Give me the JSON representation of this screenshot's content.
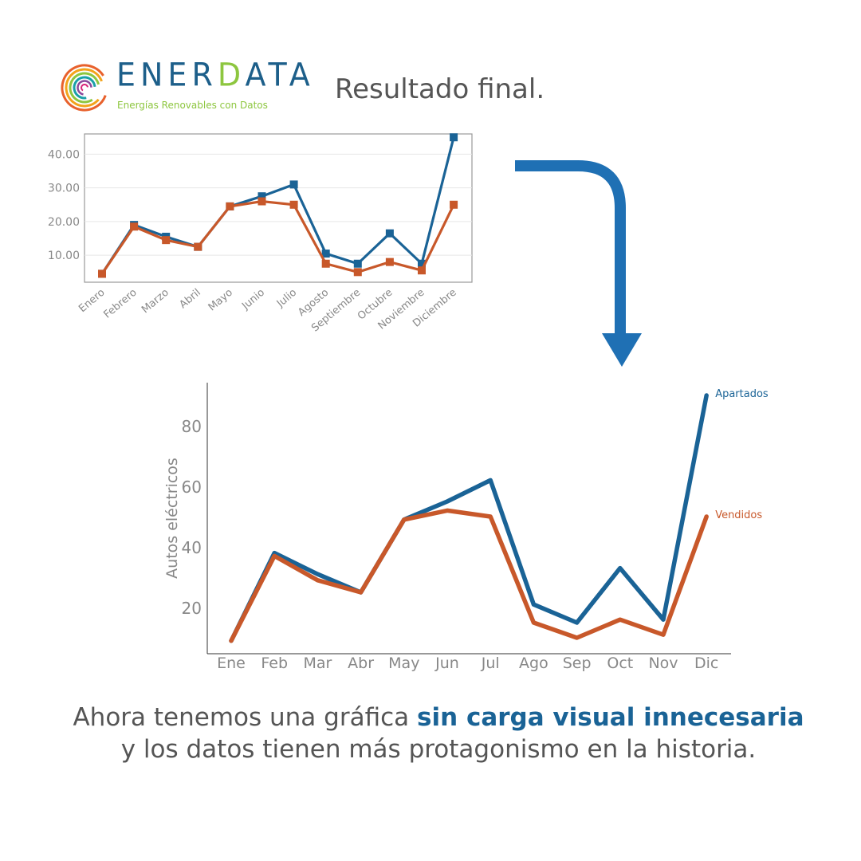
{
  "header": {
    "logo_text": "ENERDATA",
    "logo_tagline": "Energías Renovables con Datos",
    "title": "Resultado final."
  },
  "colors": {
    "apartados": "#1a6396",
    "vendidos": "#c8582a",
    "axis_text": "#888888",
    "arrow": "#1f70b4"
  },
  "arrow": {
    "icon": "curved-arrow-down-icon"
  },
  "chart_data": [
    {
      "type": "line",
      "grid": true,
      "markers": "square",
      "legend": "none",
      "categories": [
        "Enero",
        "Febrero",
        "Marzo",
        "Abril",
        "Mayo",
        "Junio",
        "Julio",
        "Agosto",
        "Septiembre",
        "Octubre",
        "Noviembre",
        "Diciembre"
      ],
      "yticks": [
        "10.00",
        "20.00",
        "30.00",
        "40.00"
      ],
      "ylim": [
        2,
        46
      ],
      "series": [
        {
          "name": "",
          "values": [
            4.5,
            19,
            15.5,
            12.5,
            24.5,
            27.5,
            31,
            10.5,
            7.5,
            16.5,
            7.5,
            45
          ]
        },
        {
          "name": "",
          "values": [
            4.5,
            18.5,
            14.5,
            12.5,
            24.5,
            26,
            25,
            7.5,
            5,
            8,
            5.5,
            25
          ]
        }
      ]
    },
    {
      "type": "line",
      "grid": false,
      "legend": "inline-right",
      "ylabel": "Autos eléctricos",
      "categories": [
        "Ene",
        "Feb",
        "Mar",
        "Abr",
        "May",
        "Jun",
        "Jul",
        "Ago",
        "Sep",
        "Oct",
        "Nov",
        "Dic"
      ],
      "yticks": [
        "20",
        "40",
        "60",
        "80"
      ],
      "ylim": [
        5,
        95
      ],
      "series": [
        {
          "name": "Apartados",
          "values": [
            9,
            38,
            31,
            25,
            49,
            55,
            62,
            21,
            15,
            33,
            16,
            90
          ]
        },
        {
          "name": "Vendidos",
          "values": [
            9,
            37,
            29,
            25,
            49,
            52,
            50,
            15,
            10,
            16,
            11,
            50
          ]
        }
      ]
    }
  ],
  "caption": {
    "part1": "Ahora tenemos una gráfica ",
    "highlight1": "sin carga visual innecesaria",
    "part2": " y los datos tienen más protagonismo en la historia."
  }
}
